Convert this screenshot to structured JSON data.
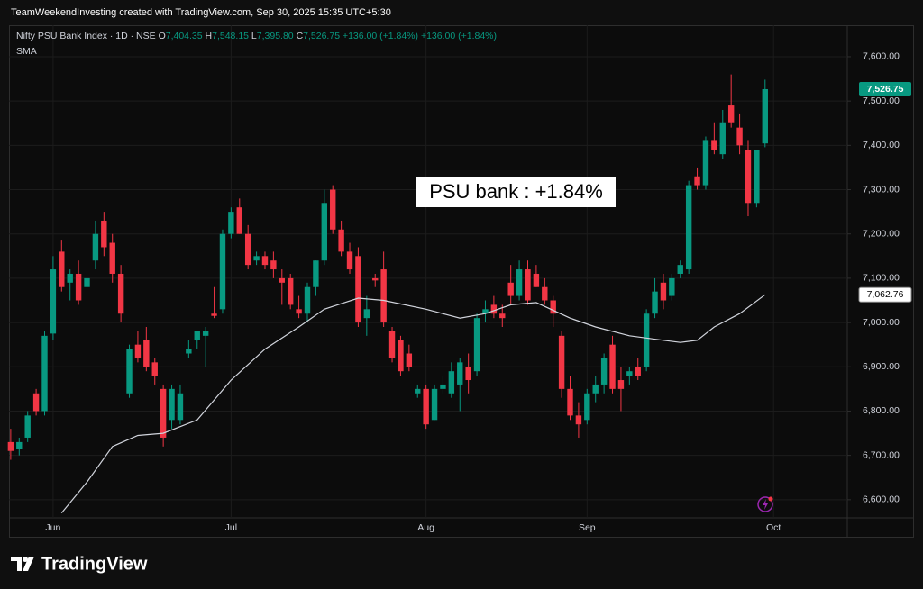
{
  "header": {
    "title": "TeamWeekendInvesting created with TradingView.com, Sep 30, 2025 15:35 UTC+5:30"
  },
  "chart_data": {
    "type": "candlestick",
    "symbol": "Nifty PSU Bank Index · 1D · NSE",
    "ohlc_legend": [
      {
        "label": "O",
        "value": "7,404.35"
      },
      {
        "label": "H",
        "value": "7,548.15"
      },
      {
        "label": "L",
        "value": "7,395.80"
      },
      {
        "label": "C",
        "value": "7,526.75"
      }
    ],
    "change_labels": [
      "+136.00 (+1.84%)",
      "+136.00 (+1.84%)"
    ],
    "annotation": "PSU bank : +1.84%",
    "open": [
      6730,
      6715,
      6740,
      6840,
      6800,
      6975,
      7160,
      7090,
      7110,
      7080,
      7140,
      7230,
      7180,
      7110,
      6840,
      6950,
      6960,
      6910,
      6850,
      6780,
      6780,
      6930,
      6960,
      6970,
      7020,
      7030,
      7200,
      7260,
      7200,
      7140,
      7150,
      7140,
      7100,
      7100,
      7030,
      7020,
      7080,
      7140,
      7300,
      7210,
      7160,
      7150,
      7010,
      7100,
      7120,
      6980,
      6960,
      6930,
      6840,
      6850,
      6780,
      6850,
      6840,
      6860,
      6900,
      6890,
      7020,
      7040,
      7020,
      7090,
      7060,
      7120,
      7110,
      7080,
      7050,
      6970,
      6850,
      6790,
      6780,
      6840,
      6860,
      6950,
      6870,
      6880,
      6900,
      6900,
      7020,
      7090,
      7060,
      7110,
      7120,
      7330,
      7310,
      7410,
      7380,
      7490,
      7440,
      7390,
      7270,
      7404.35
    ],
    "high": [
      6760,
      6740,
      6800,
      6850,
      6980,
      7150,
      7185,
      7120,
      7140,
      7110,
      7230,
      7250,
      7200,
      7130,
      6950,
      6980,
      6990,
      6920,
      6860,
      6860,
      6860,
      6960,
      6980,
      6990,
      7080,
      7210,
      7260,
      7280,
      7220,
      7160,
      7160,
      7160,
      7120,
      7110,
      7060,
      7090,
      7140,
      7300,
      7310,
      7230,
      7180,
      7170,
      7060,
      7110,
      7160,
      6990,
      6970,
      6950,
      6860,
      6860,
      6860,
      6880,
      6910,
      6920,
      6930,
      7020,
      7050,
      7060,
      7040,
      7130,
      7140,
      7140,
      7130,
      7100,
      7060,
      6980,
      6880,
      6820,
      6850,
      6880,
      6930,
      6970,
      6900,
      6900,
      6920,
      7030,
      7100,
      7110,
      7110,
      7140,
      7320,
      7350,
      7420,
      7450,
      7480,
      7560,
      7470,
      7410,
      7390,
      7548.15
    ],
    "low": [
      6690,
      6700,
      6730,
      6790,
      6790,
      6960,
      7070,
      7050,
      7040,
      7000,
      7120,
      7150,
      7090,
      7000,
      6830,
      6910,
      6890,
      6860,
      6720,
      6760,
      6770,
      6920,
      6940,
      6900,
      7010,
      7020,
      7190,
      7200,
      7120,
      7130,
      7120,
      7100,
      7040,
      7030,
      7010,
      7000,
      7060,
      7130,
      7200,
      7150,
      7110,
      6990,
      6970,
      7080,
      6990,
      6910,
      6880,
      6890,
      6830,
      6760,
      6780,
      6840,
      6830,
      6800,
      6840,
      6880,
      7000,
      7010,
      6990,
      7040,
      7050,
      7040,
      7080,
      7040,
      6990,
      6830,
      6780,
      6740,
      6770,
      6820,
      6840,
      6840,
      6800,
      6860,
      6870,
      6890,
      7010,
      7030,
      7050,
      7100,
      7110,
      7300,
      7300,
      7380,
      7370,
      7440,
      7380,
      7240,
      7260,
      7395.8
    ],
    "close": [
      6710,
      6730,
      6790,
      6800,
      6970,
      7120,
      7080,
      7110,
      7050,
      7100,
      7200,
      7170,
      7110,
      7020,
      6940,
      6920,
      6900,
      6880,
      6740,
      6850,
      6840,
      6940,
      6980,
      6980,
      7015,
      7200,
      7250,
      7200,
      7130,
      7150,
      7130,
      7120,
      7090,
      7040,
      7020,
      7080,
      7140,
      7270,
      7210,
      7160,
      7120,
      7000,
      7030,
      7095,
      7000,
      6920,
      6890,
      6900,
      6850,
      6770,
      6850,
      6860,
      6890,
      6910,
      6870,
      7010,
      7030,
      7020,
      7010,
      7060,
      7120,
      7050,
      7080,
      7050,
      7020,
      6850,
      6790,
      6770,
      6840,
      6860,
      6920,
      6850,
      6850,
      6890,
      6880,
      7020,
      7070,
      7050,
      7100,
      7130,
      7310,
      7310,
      7410,
      7390,
      7450,
      7450,
      7400,
      7270,
      7390,
      7526.75
    ],
    "up_color": "#089981",
    "down_color": "#f23645",
    "sma": {
      "name": "SMA",
      "color": "#d1d4dc",
      "x": [
        6,
        9,
        12,
        15,
        18,
        22,
        26,
        30,
        34,
        37,
        41,
        44,
        49,
        53,
        56,
        59,
        62,
        66,
        69,
        73,
        77,
        79,
        81,
        83,
        86,
        89
      ],
      "values": [
        6570,
        6640,
        6720,
        6745,
        6750,
        6780,
        6870,
        6940,
        6990,
        7030,
        7055,
        7050,
        7030,
        7010,
        7020,
        7040,
        7045,
        7010,
        6990,
        6970,
        6960,
        6955,
        6960,
        6990,
        7020,
        7062.76
      ],
      "last_label": "7,062.76"
    },
    "last_price_label": "7,526.75",
    "ylim": [
      6559,
      7667
    ],
    "yticks": [
      {
        "value": 6600,
        "label": "6,600.00"
      },
      {
        "value": 6700,
        "label": "6,700.00"
      },
      {
        "value": 6800,
        "label": "6,800.00"
      },
      {
        "value": 6900,
        "label": "6,900.00"
      },
      {
        "value": 7000,
        "label": "7,000.00"
      },
      {
        "value": 7100,
        "label": "7,100.00"
      },
      {
        "value": 7200,
        "label": "7,200.00"
      },
      {
        "value": 7300,
        "label": "7,300.00"
      },
      {
        "value": 7400,
        "label": "7,400.00"
      },
      {
        "value": 7500,
        "label": "7,500.00"
      },
      {
        "value": 7600,
        "label": "7,600.00"
      }
    ],
    "xlim": [
      -0.2,
      98.7
    ],
    "xticks": [
      {
        "value": 5,
        "label": "Jun"
      },
      {
        "value": 26,
        "label": "Jul"
      },
      {
        "value": 49,
        "label": "Aug"
      },
      {
        "value": 68,
        "label": "Sep"
      },
      {
        "value": 90,
        "label": "Oct"
      }
    ],
    "grid": true
  },
  "footer": {
    "logo": "TradingView"
  }
}
